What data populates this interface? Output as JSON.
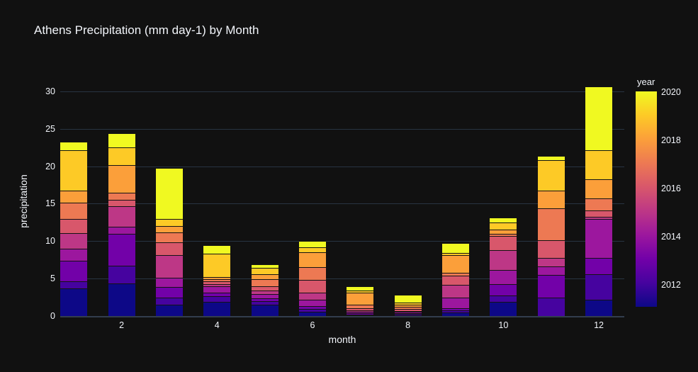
{
  "colors": {
    "background": "#111111",
    "grid": "#283442",
    "zeroline": "#323d4d",
    "text": "#f2f5fa",
    "separator": "#131313"
  },
  "chart_data": {
    "type": "bar",
    "stacked": true,
    "title": "Athens Precipitation (mm day-1) by Month",
    "xlabel": "month",
    "ylabel": "precipitation",
    "x": [
      1,
      2,
      3,
      4,
      5,
      6,
      7,
      8,
      9,
      10,
      11,
      12
    ],
    "x_ticks": [
      2,
      4,
      6,
      8,
      10,
      12
    ],
    "y_ticks": [
      0,
      5,
      10,
      15,
      20,
      25,
      30
    ],
    "ylim": [
      0,
      31.8
    ],
    "grid": true,
    "legend": {
      "title": "year",
      "type": "colorbar",
      "position": "right",
      "range": [
        2011,
        2020
      ],
      "ticks": [
        2012,
        2014,
        2016,
        2018,
        2020
      ]
    },
    "series": [
      {
        "name": "2011",
        "color": "#0d0887",
        "values": [
          3.7,
          4.35,
          1.5,
          1.85,
          1.5,
          0.6,
          0.05,
          0.1,
          0.5,
          1.85,
          0,
          2.15
        ]
      },
      {
        "name": "2012",
        "color": "#46039f",
        "values": [
          0.95,
          2.35,
          0.95,
          0.8,
          0.45,
          0.3,
          0.15,
          0.15,
          0.25,
          0.85,
          2.45,
          3.45
        ]
      },
      {
        "name": "2013",
        "color": "#7201a8",
        "values": [
          2.7,
          4.25,
          1.4,
          0.45,
          0.45,
          0.45,
          0.2,
          0.12,
          0.3,
          1.55,
          3.0,
          2.2
        ]
      },
      {
        "name": "2014",
        "color": "#9c179e",
        "values": [
          1.65,
          0.95,
          1.25,
          0.9,
          0.5,
          0.8,
          0.2,
          0.15,
          1.4,
          1.9,
          1.2,
          5.15
        ]
      },
      {
        "name": "2015",
        "color": "#bd3786",
        "values": [
          2.05,
          2.8,
          3.0,
          0.3,
          0.55,
          0.95,
          0.2,
          0.18,
          1.7,
          2.6,
          1.15,
          0.3
        ]
      },
      {
        "name": "2016",
        "color": "#d8576b",
        "values": [
          1.9,
          0.85,
          1.7,
          0.3,
          0.55,
          1.7,
          0.25,
          0.22,
          1.25,
          1.95,
          2.3,
          0.8
        ]
      },
      {
        "name": "2017",
        "color": "#ed7953",
        "values": [
          2.2,
          0.95,
          1.4,
          0.3,
          0.95,
          1.7,
          0.45,
          0.28,
          0.4,
          0.3,
          4.25,
          1.7
        ]
      },
      {
        "name": "2018",
        "color": "#fb9f3a",
        "values": [
          1.6,
          3.65,
          0.8,
          0.3,
          0.65,
          2.05,
          1.65,
          0.3,
          2.3,
          0.55,
          2.4,
          2.5
        ]
      },
      {
        "name": "2019",
        "color": "#fdca26",
        "values": [
          5.35,
          2.4,
          0.95,
          3.15,
          0.8,
          0.65,
          0.25,
          0.3,
          0.3,
          0.95,
          4.1,
          3.9
        ]
      },
      {
        "name": "2020",
        "color": "#f0f921",
        "values": [
          1.15,
          1.85,
          6.8,
          1.15,
          0.5,
          0.8,
          0.55,
          1.0,
          1.35,
          0.7,
          0.5,
          8.55
        ]
      }
    ]
  }
}
